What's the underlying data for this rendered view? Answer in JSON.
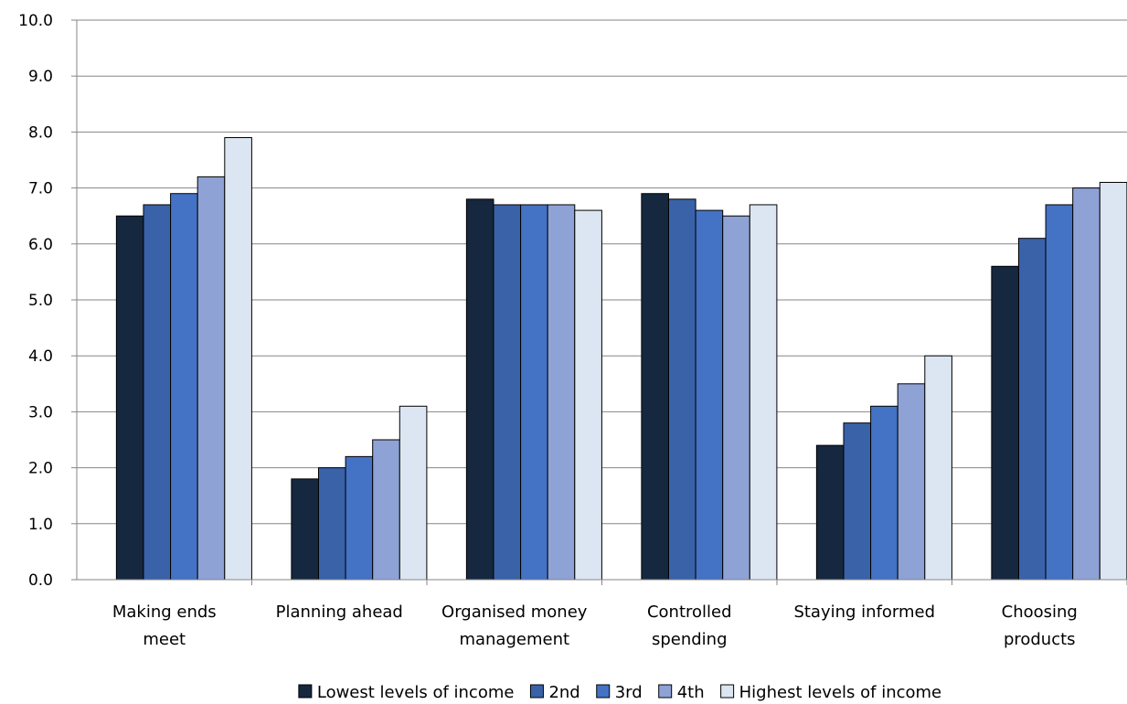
{
  "chart_data": {
    "type": "bar",
    "title": "",
    "xlabel": "",
    "ylabel": "",
    "ylim": [
      0,
      10
    ],
    "y_ticks": [
      "0.0",
      "1.0",
      "2.0",
      "3.0",
      "4.0",
      "5.0",
      "6.0",
      "7.0",
      "8.0",
      "9.0",
      "10.0"
    ],
    "grid": "horizontal",
    "legend_position": "bottom",
    "categories": [
      [
        "Making ends",
        "meet"
      ],
      [
        "Planning ahead"
      ],
      [
        "Organised money",
        "management"
      ],
      [
        "Controlled",
        "spending"
      ],
      [
        "Staying informed"
      ],
      [
        "Choosing",
        "products"
      ]
    ],
    "series": [
      {
        "name": "Lowest levels of income",
        "color": "#16283f",
        "values": [
          6.5,
          1.8,
          6.8,
          6.9,
          2.4,
          5.6
        ]
      },
      {
        "name": "2nd",
        "color": "#3a62a8",
        "values": [
          6.7,
          2.0,
          6.7,
          6.8,
          2.8,
          6.1
        ]
      },
      {
        "name": "3rd",
        "color": "#4472c4",
        "values": [
          6.9,
          2.2,
          6.7,
          6.6,
          3.1,
          6.7
        ]
      },
      {
        "name": "4th",
        "color": "#8ea2d6",
        "values": [
          7.2,
          2.5,
          6.7,
          6.5,
          3.5,
          7.0
        ]
      },
      {
        "name": "Highest levels of income",
        "color": "#dce6f2",
        "values": [
          7.9,
          3.1,
          6.6,
          6.7,
          4.0,
          7.1
        ]
      }
    ]
  }
}
